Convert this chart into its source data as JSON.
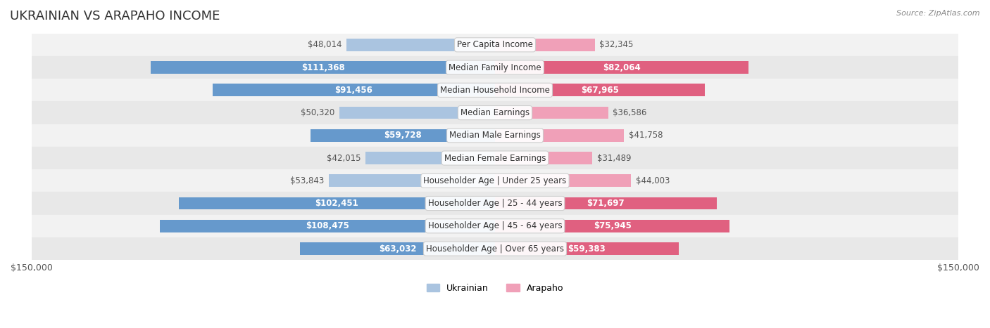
{
  "title": "UKRAINIAN VS ARAPAHO INCOME",
  "source": "Source: ZipAtlas.com",
  "max_value": 150000,
  "categories": [
    "Per Capita Income",
    "Median Family Income",
    "Median Household Income",
    "Median Earnings",
    "Median Male Earnings",
    "Median Female Earnings",
    "Householder Age | Under 25 years",
    "Householder Age | 25 - 44 years",
    "Householder Age | 45 - 64 years",
    "Householder Age | Over 65 years"
  ],
  "ukrainian_values": [
    48014,
    111368,
    91456,
    50320,
    59728,
    42015,
    53843,
    102451,
    108475,
    63032
  ],
  "arapaho_values": [
    32345,
    82064,
    67965,
    36586,
    41758,
    31489,
    44003,
    71697,
    75945,
    59383
  ],
  "ukrainian_labels": [
    "$48,014",
    "$111,368",
    "$91,456",
    "$50,320",
    "$59,728",
    "$42,015",
    "$53,843",
    "$102,451",
    "$108,475",
    "$63,032"
  ],
  "arapaho_labels": [
    "$32,345",
    "$82,064",
    "$67,965",
    "$36,586",
    "$41,758",
    "$31,489",
    "$44,003",
    "$71,697",
    "$75,945",
    "$59,383"
  ],
  "ukrainian_color_dark": "#6699cc",
  "ukrainian_color_light": "#aac4e0",
  "arapaho_color_dark": "#e06080",
  "arapaho_color_light": "#f0a0b8",
  "row_bg_color": "#f0f0f0",
  "row_alt_bg_color": "#e8e8e8",
  "bar_height": 0.55,
  "legend_ukrainian": "Ukrainian",
  "legend_arapaho": "Arapaho",
  "xlabel_left": "$150,000",
  "xlabel_right": "$150,000",
  "title_fontsize": 13,
  "label_fontsize": 8.5,
  "category_fontsize": 8.5,
  "axis_label_fontsize": 9
}
